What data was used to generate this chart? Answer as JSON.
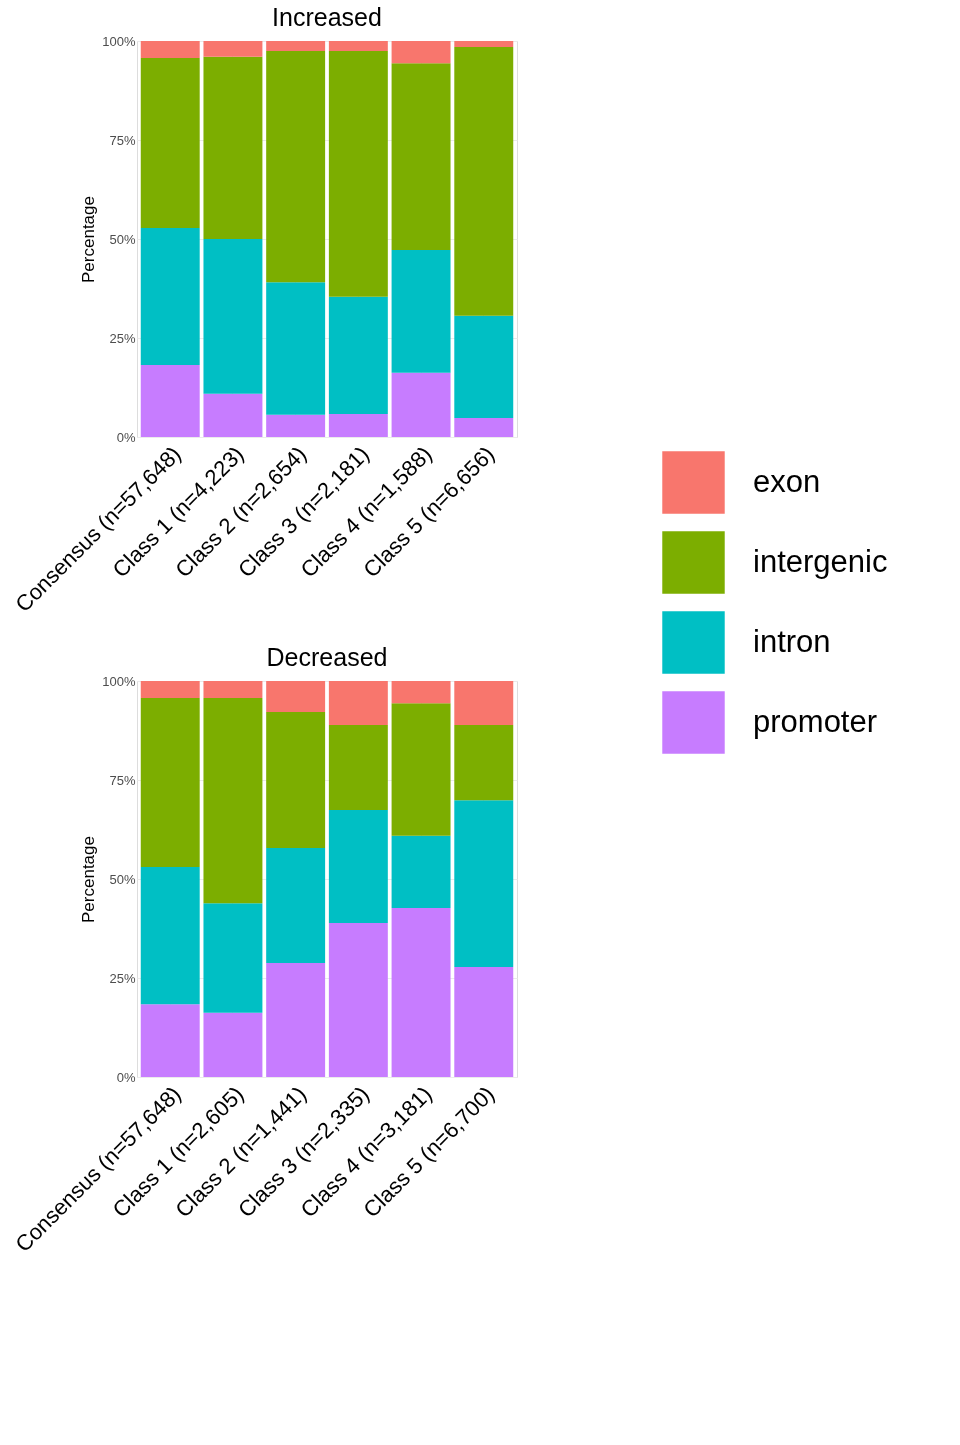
{
  "chart_data": [
    {
      "type": "bar",
      "stacked": true,
      "title": "Increased",
      "ylabel": "Percentage",
      "grid": true,
      "legend": "right",
      "categories": [
        "Consensus (n=57,648)",
        "Class 1 (n=4,223)",
        "Class 2 (n=2,654)",
        "Class 3 (n=2,181)",
        "Class 4 (n=1,588)",
        "Class 5 (n=6,656)"
      ],
      "ylim": [
        0,
        100
      ],
      "yticks": [
        {
          "value": 0,
          "label": "0%"
        },
        {
          "value": 25,
          "label": "25%"
        },
        {
          "value": 50,
          "label": "50%"
        },
        {
          "value": 75,
          "label": "75%"
        },
        {
          "value": 100,
          "label": "100%"
        }
      ],
      "series": [
        {
          "name": "promoter",
          "color": "#c77cff",
          "values": [
            18.2,
            10.9,
            5.6,
            5.8,
            16.2,
            4.8
          ]
        },
        {
          "name": "intron",
          "color": "#00bfc4",
          "values": [
            34.6,
            39.1,
            33.5,
            29.6,
            31.0,
            25.8
          ]
        },
        {
          "name": "intergenic",
          "color": "#7cae00",
          "values": [
            42.9,
            46.0,
            58.4,
            62.1,
            47.2,
            67.9
          ]
        },
        {
          "name": "exon",
          "color": "#f8766d",
          "values": [
            4.3,
            4.0,
            2.5,
            2.5,
            5.6,
            1.5
          ]
        }
      ]
    },
    {
      "type": "bar",
      "stacked": true,
      "title": "Decreased",
      "ylabel": "Percentage",
      "grid": true,
      "categories": [
        "Consensus (n=57,648)",
        "Class 1 (n=2,605)",
        "Class 2 (n=1,441)",
        "Class 3 (n=2,335)",
        "Class 4 (n=3,181)",
        "Class 5 (n=6,700)"
      ],
      "ylim": [
        0,
        100
      ],
      "yticks": [
        {
          "value": 0,
          "label": "0%"
        },
        {
          "value": 25,
          "label": "25%"
        },
        {
          "value": 50,
          "label": "50%"
        },
        {
          "value": 75,
          "label": "75%"
        },
        {
          "value": 100,
          "label": "100%"
        }
      ],
      "series": [
        {
          "name": "promoter",
          "color": "#c77cff",
          "values": [
            18.4,
            16.2,
            28.8,
            38.9,
            42.7,
            27.8
          ]
        },
        {
          "name": "intron",
          "color": "#00bfc4",
          "values": [
            34.6,
            27.7,
            29.0,
            28.5,
            18.2,
            42.1
          ]
        },
        {
          "name": "intergenic",
          "color": "#7cae00",
          "values": [
            42.7,
            51.8,
            34.4,
            21.5,
            33.5,
            19.0
          ]
        },
        {
          "name": "exon",
          "color": "#f8766d",
          "values": [
            4.3,
            4.3,
            7.8,
            11.1,
            5.6,
            11.1
          ]
        }
      ]
    }
  ]
}
